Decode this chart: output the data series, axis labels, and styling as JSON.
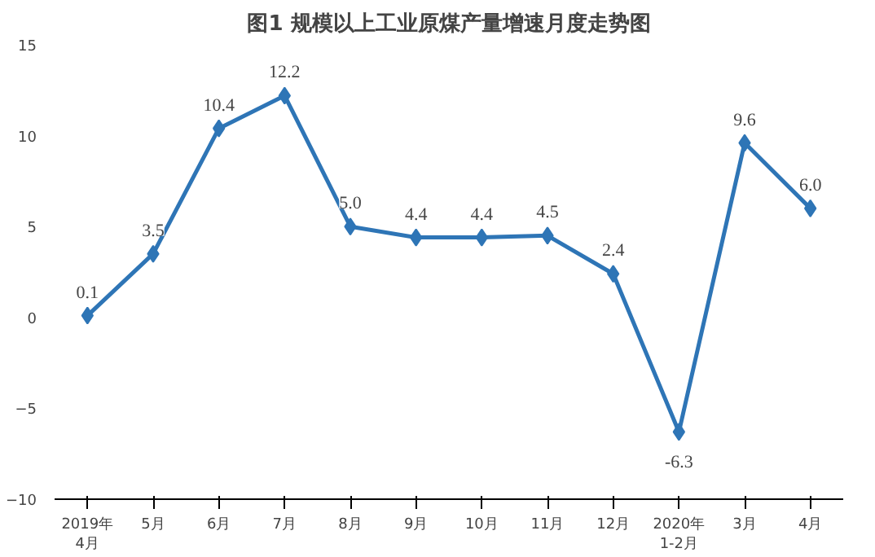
{
  "chart_data": {
    "type": "line",
    "title": "图1 规模以上工业原煤产量增速月度走势图",
    "categories": [
      "2019年\n4月",
      "5月",
      "6月",
      "7月",
      "8月",
      "9月",
      "10月",
      "11月",
      "12月",
      "2020年\n1-2月",
      "3月",
      "4月"
    ],
    "series": [
      {
        "color": "#2e75b6",
        "values": [
          0.1,
          3.5,
          10.4,
          12.2,
          5.0,
          4.4,
          4.4,
          4.5,
          2.4,
          -6.3,
          9.6,
          6.0
        ],
        "value_labels": [
          "0.1",
          "3.5",
          "10.4",
          "12.2",
          "5.0",
          "4.4",
          "4.4",
          "4.5",
          "2.4",
          "-6.3",
          "9.6",
          "6.0"
        ]
      }
    ],
    "ylim": [
      -10,
      15
    ],
    "yticks": [
      -10,
      -5,
      0,
      5,
      10,
      15
    ],
    "grid": false,
    "marker": "diamond",
    "line_style": "solid"
  }
}
